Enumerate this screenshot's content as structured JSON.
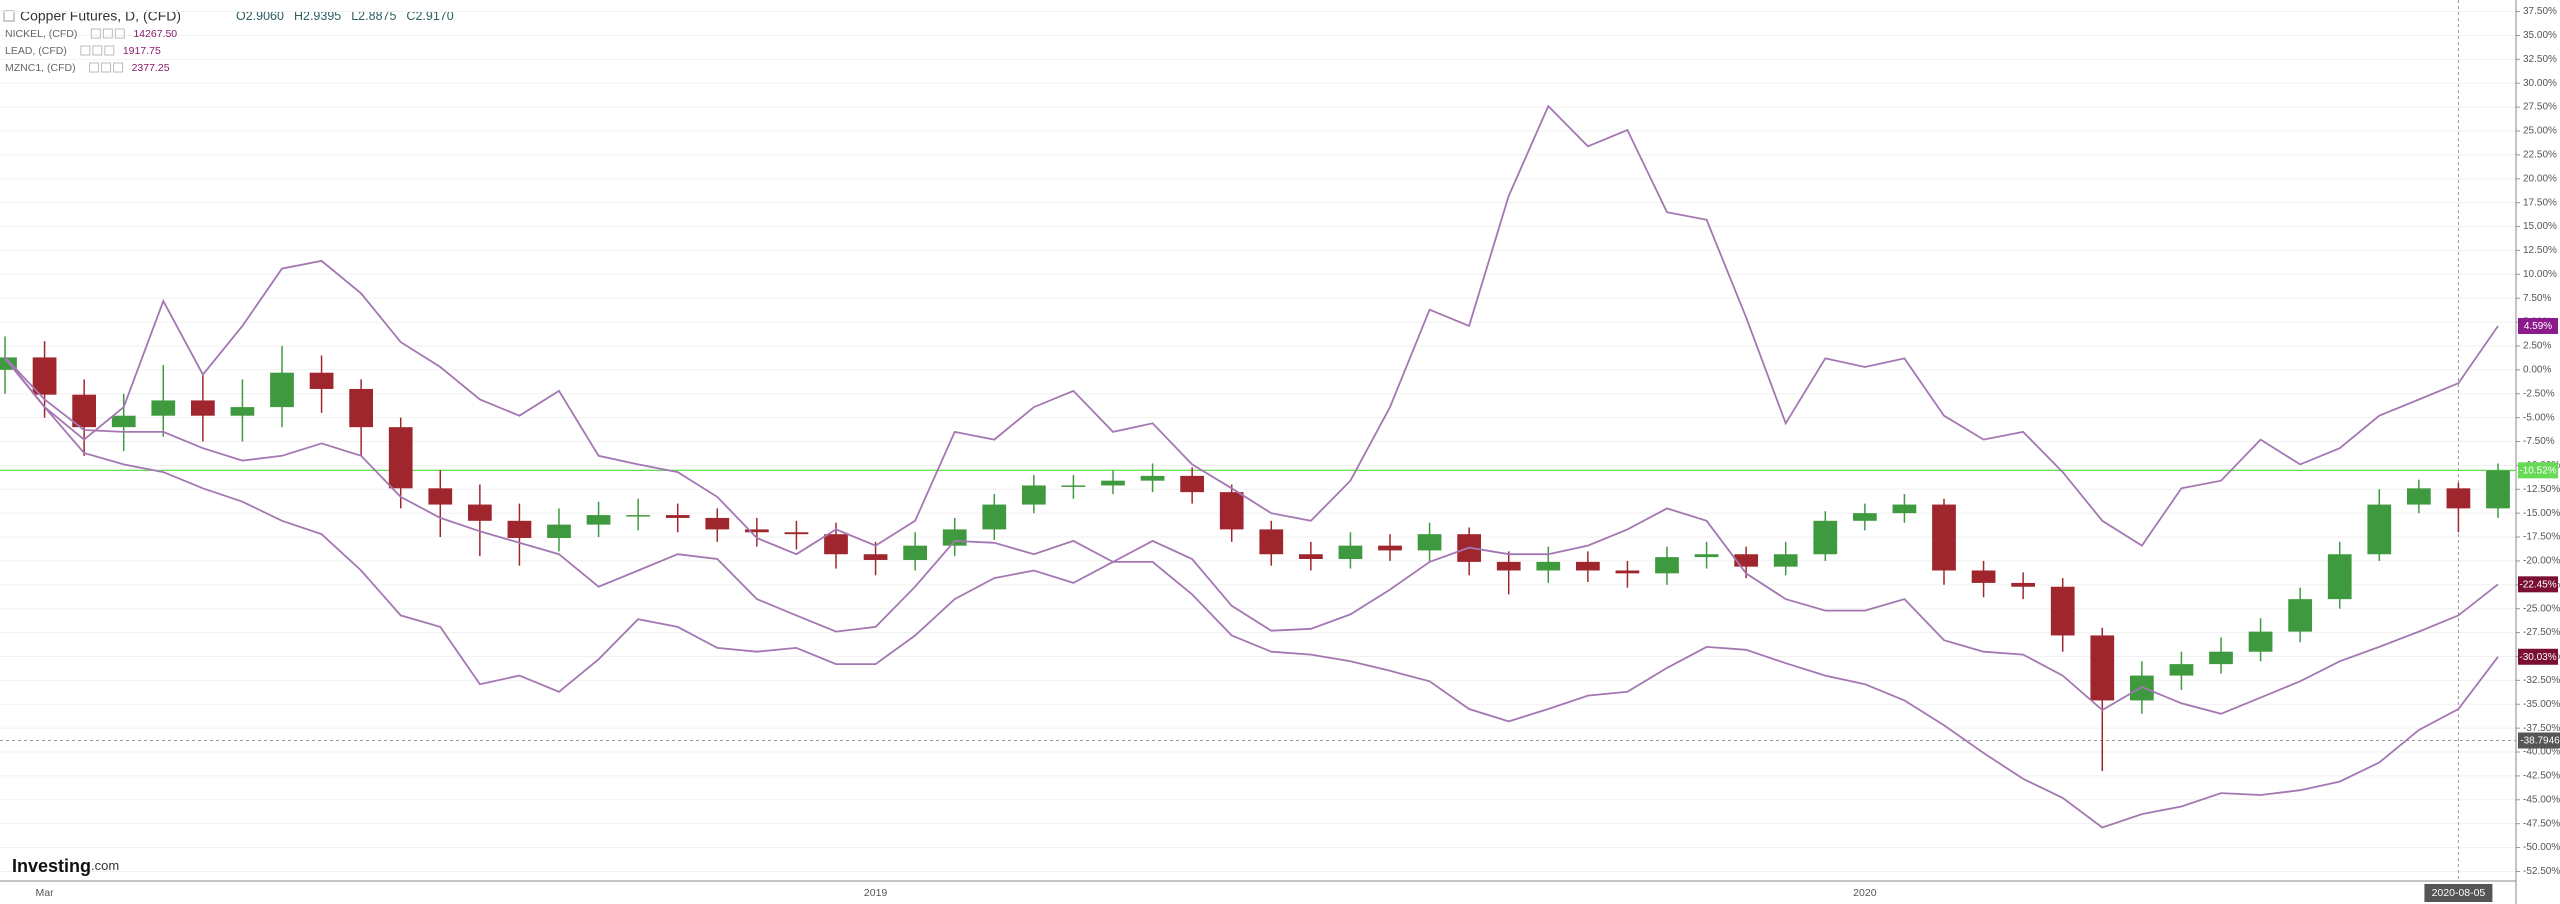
{
  "chart_data": {
    "type": "candlestick",
    "title": "Copper Futures, D, (CFD)",
    "ohlc": [
      "O2.9060",
      "H2.9395",
      "L2.8875",
      "C2.9170"
    ],
    "brand": [
      "Investing",
      ".com"
    ],
    "categories": [
      null,
      "Mar",
      null,
      null,
      null,
      null,
      null,
      null,
      null,
      null,
      null,
      null,
      null,
      null,
      null,
      null,
      null,
      null,
      null,
      null,
      null,
      null,
      "2019",
      null,
      null,
      null,
      null,
      null,
      null,
      null,
      null,
      null,
      null,
      null,
      null,
      null,
      null,
      null,
      null,
      null,
      null,
      null,
      null,
      null,
      null,
      null,
      null,
      "2020",
      null,
      null,
      null,
      null,
      null,
      null,
      null,
      null,
      null,
      null,
      null,
      null,
      null,
      null,
      "2020-08-05",
      null
    ],
    "ylim": [
      -53.5,
      38.5
    ],
    "yticks": [
      {
        "value": 37.5,
        "label": "37.50%"
      },
      {
        "value": 35,
        "label": "35.00%"
      },
      {
        "value": 32.5,
        "label": "32.50%"
      },
      {
        "value": 30,
        "label": "30.00%"
      },
      {
        "value": 27.5,
        "label": "27.50%"
      },
      {
        "value": 25,
        "label": "25.00%"
      },
      {
        "value": 22.5,
        "label": "22.50%"
      },
      {
        "value": 20,
        "label": "20.00%"
      },
      {
        "value": 17.5,
        "label": "17.50%"
      },
      {
        "value": 15,
        "label": "15.00%"
      },
      {
        "value": 12.5,
        "label": "12.50%"
      },
      {
        "value": 10,
        "label": "10.00%"
      },
      {
        "value": 7.5,
        "label": "7.50%"
      },
      {
        "value": 5,
        "label": "5.00%"
      },
      {
        "value": 2.5,
        "label": "2.50%"
      },
      {
        "value": 0,
        "label": "0.00%"
      },
      {
        "value": -2.5,
        "label": "-2.50%"
      },
      {
        "value": -5,
        "label": "-5.00%"
      },
      {
        "value": -7.5,
        "label": "-7.50%"
      },
      {
        "value": -10,
        "label": "-10.00%"
      },
      {
        "value": -12.5,
        "label": "-12.50%"
      },
      {
        "value": -15,
        "label": "-15.00%"
      },
      {
        "value": -17.5,
        "label": "-17.50%"
      },
      {
        "value": -20,
        "label": "-20.00%"
      },
      {
        "value": -22.5,
        "label": "-22.50%"
      },
      {
        "value": -25,
        "label": "-25.00%"
      },
      {
        "value": -27.5,
        "label": "-27.50%"
      },
      {
        "value": -30,
        "label": "-30.00%"
      },
      {
        "value": -32.5,
        "label": "-32.50%"
      },
      {
        "value": -35,
        "label": "-35.00%"
      },
      {
        "value": -37.5,
        "label": "-37.50%"
      },
      {
        "value": -40,
        "label": "-40.00%"
      },
      {
        "value": -42.5,
        "label": "-42.50%"
      },
      {
        "value": -45,
        "label": "-45.00%"
      },
      {
        "value": -47.5,
        "label": "-47.50%"
      },
      {
        "value": -50,
        "label": "-50.00%"
      },
      {
        "value": -52.5,
        "label": "-52.50%"
      }
    ],
    "grid": true,
    "crosshair_y": -38.7946,
    "series": [
      {
        "type": "candlestick",
        "up_color": "#3f9a3f",
        "down_color": "#a0262e",
        "label_color": "#66d955",
        "open": [
          0,
          1.3,
          -2.6,
          -6.0,
          -4.8,
          -3.2,
          -4.8,
          -3.9,
          -0.3,
          -2.0,
          -6.0,
          -12.4,
          -14.1,
          -15.8,
          -17.6,
          -16.2,
          -15.2,
          -15.2,
          -15.5,
          -16.7,
          -17.0,
          -17.2,
          -19.3,
          -19.9,
          -18.4,
          -16.7,
          -14.1,
          -12.1,
          -12.1,
          -11.6,
          -11.1,
          -12.8,
          -16.7,
          -19.3,
          -19.8,
          -18.4,
          -18.9,
          -17.2,
          -20.1,
          -21.0,
          -20.1,
          -21.0,
          -21.3,
          -19.6,
          -19.3,
          -20.6,
          -19.3,
          -15.8,
          -15.0,
          -14.1,
          -21.0,
          -22.3,
          -22.7,
          -27.8,
          -34.6,
          -32.0,
          -30.8,
          -29.5,
          -27.4,
          -24.0,
          -19.3,
          -14.1,
          -12.4,
          -14.5
        ],
        "high": [
          3.5,
          3.0,
          -1.0,
          -2.5,
          0.5,
          -0.5,
          -1.0,
          2.5,
          1.5,
          -1.0,
          -5.0,
          -10.5,
          -12.0,
          -14.0,
          -14.5,
          -13.8,
          -13.5,
          -14.0,
          -14.5,
          -15.5,
          -15.8,
          -16.0,
          -18.0,
          -17.0,
          -15.5,
          -13.0,
          -11.0,
          -11.0,
          -10.5,
          -9.8,
          -10.2,
          -12.0,
          -15.8,
          -18.0,
          -17.0,
          -17.2,
          -16.0,
          -16.5,
          -19.0,
          -18.5,
          -19.0,
          -20.0,
          -18.5,
          -18.0,
          -18.5,
          -18.0,
          -14.8,
          -14.0,
          -13.0,
          -13.5,
          -20.0,
          -21.2,
          -21.8,
          -27.0,
          -30.5,
          -29.5,
          -28.0,
          -26.0,
          -22.8,
          -18.0,
          -12.5,
          -11.5,
          -11.8,
          -9.8
        ],
        "low": [
          -2.5,
          -5.0,
          -9.0,
          -8.5,
          -7.0,
          -7.5,
          -7.5,
          -6.0,
          -4.5,
          -9.0,
          -14.5,
          -17.5,
          -19.5,
          -20.5,
          -19.0,
          -17.5,
          -16.8,
          -17.0,
          -18.0,
          -18.5,
          -18.8,
          -20.8,
          -21.5,
          -21.0,
          -19.5,
          -17.8,
          -15.0,
          -13.5,
          -13.0,
          -12.8,
          -14.0,
          -18.0,
          -20.5,
          -21.0,
          -20.8,
          -20.0,
          -20.0,
          -21.5,
          -23.5,
          -22.3,
          -22.2,
          -22.8,
          -22.5,
          -20.8,
          -21.8,
          -21.5,
          -20.0,
          -16.8,
          -16.0,
          -22.5,
          -23.8,
          -24.0,
          -29.5,
          -42.0,
          -36.0,
          -33.5,
          -31.8,
          -30.5,
          -28.5,
          -25.0,
          -20.0,
          -15.0,
          -17.0,
          -15.5
        ],
        "close": [
          1.3,
          -2.6,
          -6.0,
          -4.8,
          -3.2,
          -4.8,
          -3.9,
          -0.3,
          -2.0,
          -6.0,
          -12.4,
          -14.1,
          -15.8,
          -17.6,
          -16.2,
          -15.2,
          -15.2,
          -15.5,
          -16.7,
          -17.0,
          -17.2,
          -19.3,
          -19.9,
          -18.4,
          -16.7,
          -14.1,
          -12.1,
          -12.1,
          -11.6,
          -11.1,
          -12.8,
          -16.7,
          -19.3,
          -19.8,
          -18.4,
          -18.9,
          -17.2,
          -20.1,
          -21.0,
          -20.1,
          -21.0,
          -21.3,
          -19.6,
          -19.3,
          -20.6,
          -19.3,
          -15.8,
          -15.0,
          -14.1,
          -21.0,
          -22.3,
          -22.7,
          -27.8,
          -34.6,
          -32.0,
          -30.8,
          -29.5,
          -27.4,
          -24.0,
          -19.3,
          -14.1,
          -12.4,
          -14.5,
          -10.52
        ],
        "value_labels": [
          null,
          null,
          null,
          null,
          null,
          null,
          null,
          null,
          null,
          null,
          null,
          null,
          null,
          null,
          null,
          null,
          null,
          null,
          null,
          null,
          null,
          null,
          null,
          null,
          null,
          null,
          null,
          null,
          null,
          null,
          null,
          null,
          null,
          null,
          null,
          null,
          null,
          null,
          null,
          null,
          null,
          null,
          null,
          null,
          null,
          null,
          null,
          null,
          null,
          null,
          null,
          null,
          null,
          null,
          null,
          null,
          null,
          null,
          null,
          null,
          null,
          null,
          null,
          "-10.52%"
        ]
      },
      {
        "type": "line",
        "name": "NICKEL, (CFD)",
        "price": "14267.50",
        "color": "#a477b3",
        "label_color": "#8b1a8b",
        "values": [
          1.2,
          -3.9,
          -7.3,
          -3.9,
          7.2,
          -0.5,
          4.6,
          10.6,
          11.4,
          8.0,
          2.9,
          0.3,
          -3.1,
          -4.8,
          -2.2,
          -9.0,
          -9.9,
          -10.7,
          -13.3,
          -17.6,
          -19.3,
          -16.7,
          -18.4,
          -15.8,
          -6.5,
          -7.3,
          -3.9,
          -2.2,
          -6.5,
          -5.6,
          -9.9,
          -12.4,
          -15.0,
          -15.8,
          -11.6,
          -3.9,
          6.3,
          4.6,
          18.2,
          27.6,
          23.4,
          25.1,
          16.5,
          15.7,
          5.5,
          -5.6,
          1.2,
          0.3,
          1.2,
          -4.8,
          -7.3,
          -6.5,
          -10.7,
          -15.8,
          -18.4,
          -12.4,
          -11.6,
          -7.3,
          -9.9,
          -8.2,
          -4.8,
          -3.1,
          -1.4,
          4.59
        ],
        "value_labels": [
          null,
          null,
          null,
          null,
          null,
          null,
          null,
          null,
          null,
          null,
          null,
          null,
          null,
          null,
          null,
          null,
          null,
          null,
          null,
          null,
          null,
          null,
          null,
          null,
          null,
          null,
          null,
          null,
          null,
          null,
          null,
          null,
          null,
          null,
          null,
          null,
          null,
          null,
          null,
          null,
          null,
          null,
          null,
          null,
          null,
          null,
          null,
          null,
          null,
          null,
          null,
          null,
          null,
          null,
          null,
          null,
          null,
          null,
          null,
          null,
          null,
          null,
          null,
          "4.59%"
        ]
      },
      {
        "type": "line",
        "name": "LEAD, (CFD)",
        "price": "1917.75",
        "color": "#a477b3",
        "label_color": "#7a0f33",
        "values": [
          1.3,
          -3.1,
          -6.3,
          -6.5,
          -6.5,
          -8.2,
          -9.5,
          -9.0,
          -7.7,
          -9.0,
          -13.3,
          -15.5,
          -16.9,
          -18.1,
          -19.3,
          -22.7,
          -21.0,
          -19.3,
          -19.8,
          -24.0,
          -25.7,
          -27.4,
          -26.9,
          -22.7,
          -17.9,
          -18.1,
          -19.3,
          -17.9,
          -20.1,
          -17.9,
          -19.8,
          -24.7,
          -27.3,
          -27.1,
          -25.6,
          -23.0,
          -20.1,
          -18.6,
          -19.3,
          -19.3,
          -18.4,
          -16.7,
          -14.5,
          -15.8,
          -21.3,
          -24.0,
          -25.2,
          -25.2,
          -24.0,
          -28.3,
          -29.5,
          -29.8,
          -32.0,
          -35.6,
          -33.2,
          -34.9,
          -36.0,
          -34.3,
          -32.6,
          -30.5,
          -29.0,
          -27.4,
          -25.7,
          -22.45
        ],
        "value_labels": [
          null,
          null,
          null,
          null,
          null,
          null,
          null,
          null,
          null,
          null,
          null,
          null,
          null,
          null,
          null,
          null,
          null,
          null,
          null,
          null,
          null,
          null,
          null,
          null,
          null,
          null,
          null,
          null,
          null,
          null,
          null,
          null,
          null,
          null,
          null,
          null,
          null,
          null,
          null,
          null,
          null,
          null,
          null,
          null,
          null,
          null,
          null,
          null,
          null,
          null,
          null,
          null,
          null,
          null,
          null,
          null,
          null,
          null,
          null,
          null,
          null,
          null,
          null,
          "-22.45%"
        ]
      },
      {
        "type": "line",
        "name": "MZNC1, (CFD)",
        "price": "2377.25",
        "color": "#a477b3",
        "label_color": "#7a0f33",
        "values": [
          1.3,
          -3.9,
          -8.7,
          -9.9,
          -10.7,
          -12.4,
          -13.8,
          -15.8,
          -17.2,
          -21.0,
          -25.7,
          -26.9,
          -32.9,
          -32.0,
          -33.7,
          -30.3,
          -26.1,
          -26.9,
          -29.1,
          -29.5,
          -29.1,
          -30.8,
          -30.8,
          -27.8,
          -24.0,
          -21.8,
          -21.0,
          -22.3,
          -20.1,
          -20.1,
          -23.5,
          -27.8,
          -29.5,
          -29.8,
          -30.5,
          -31.5,
          -32.6,
          -35.5,
          -36.8,
          -35.5,
          -34.1,
          -33.7,
          -31.2,
          -29.0,
          -29.3,
          -30.7,
          -32.0,
          -32.9,
          -34.6,
          -37.2,
          -40.1,
          -42.8,
          -44.8,
          -47.9,
          -46.5,
          -45.7,
          -44.3,
          -44.5,
          -44.0,
          -43.1,
          -41.1,
          -37.7,
          -35.5,
          -30.03
        ],
        "value_labels": [
          null,
          null,
          null,
          null,
          null,
          null,
          null,
          null,
          null,
          null,
          null,
          null,
          null,
          null,
          null,
          null,
          null,
          null,
          null,
          null,
          null,
          null,
          null,
          null,
          null,
          null,
          null,
          null,
          null,
          null,
          null,
          null,
          null,
          null,
          null,
          null,
          null,
          null,
          null,
          null,
          null,
          null,
          null,
          null,
          null,
          null,
          null,
          null,
          null,
          null,
          null,
          null,
          null,
          null,
          null,
          null,
          null,
          null,
          null,
          null,
          null,
          null,
          null,
          "-30.03%"
        ]
      }
    ]
  }
}
